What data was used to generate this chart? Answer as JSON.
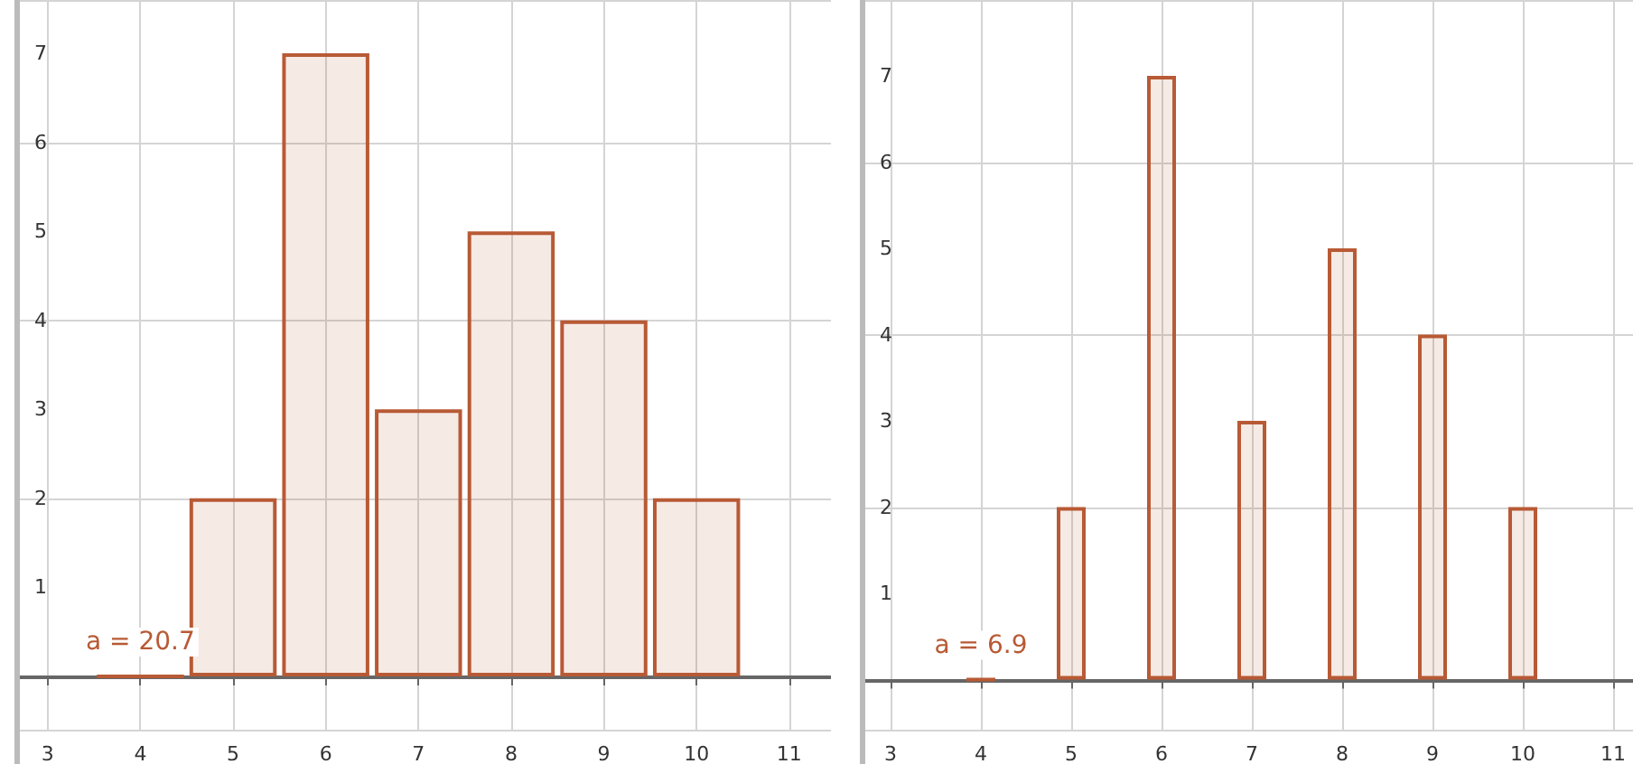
{
  "chart_data": [
    {
      "type": "bar",
      "x": [
        4,
        5,
        6,
        7,
        8,
        9,
        10
      ],
      "values": [
        0,
        2,
        7,
        3,
        5,
        4,
        2
      ],
      "color": "#b85a35",
      "xlim": [
        2.7,
        11.45
      ],
      "xticks": [
        3,
        4,
        5,
        6,
        7,
        8,
        9,
        10,
        11
      ],
      "ylim": [
        -0.6,
        7.6
      ],
      "yticks": [
        1,
        2,
        3,
        4,
        5,
        6,
        7
      ],
      "grid": true,
      "annotations": [
        {
          "text": "a = 20.7",
          "x": 4,
          "y": 0
        }
      ]
    },
    {
      "type": "bar",
      "x": [
        4,
        5,
        6,
        7,
        8,
        9,
        10
      ],
      "values": [
        0,
        2,
        7,
        3,
        5,
        4,
        2
      ],
      "color": "#b85a35",
      "xlim": [
        2.72,
        11.22
      ],
      "xticks": [
        3,
        4,
        5,
        6,
        7,
        8,
        9,
        10,
        11
      ],
      "ylim": [
        -0.58,
        7.88
      ],
      "yticks": [
        1,
        2,
        3,
        4,
        5,
        6,
        7
      ],
      "grid": true,
      "annotations": [
        {
          "text": "a = 6.9",
          "x": 4,
          "y": 0
        }
      ]
    }
  ]
}
